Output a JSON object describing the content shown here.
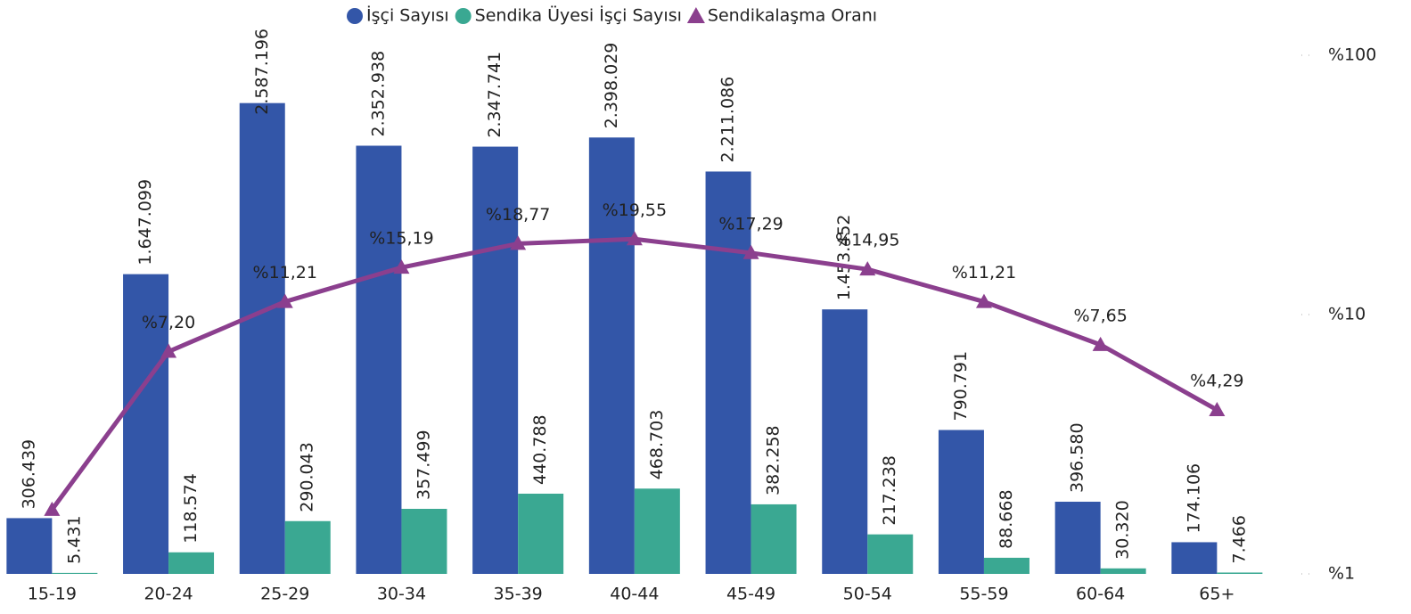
{
  "chart_data": {
    "type": "combo",
    "categories": [
      "15-19",
      "20-24",
      "25-29",
      "30-34",
      "35-39",
      "40-44",
      "45-49",
      "50-54",
      "55-59",
      "60-64",
      "65+"
    ],
    "series": [
      {
        "name": "İşçi Sayısı",
        "type": "bar",
        "color": "#3356a8",
        "values": [
          306439,
          1647099,
          2587196,
          2352938,
          2347741,
          2398029,
          2211086,
          1453452,
          790791,
          396580,
          174106
        ],
        "value_labels": [
          "306.439",
          "1.647.099",
          "2.587.196",
          "2.352.938",
          "2.347.741",
          "2.398.029",
          "2.211.086",
          "1.453.452",
          "790.791",
          "396.580",
          "174.106"
        ]
      },
      {
        "name": "Sendika Üyesi İşçi Sayısı",
        "type": "bar",
        "color": "#3aa892",
        "values": [
          5431,
          118574,
          290043,
          357499,
          440788,
          468703,
          382258,
          217238,
          88668,
          30320,
          7466
        ],
        "value_labels": [
          "5.431",
          "118.574",
          "290.043",
          "357.499",
          "440.788",
          "468.703",
          "382.258",
          "217.238",
          "88.668",
          "30.320",
          "7.466"
        ]
      },
      {
        "name": "Sendikalaşma Oranı",
        "type": "line",
        "axis": "y2",
        "color": "#8b3f8e",
        "values": [
          1.77,
          7.2,
          11.21,
          15.19,
          18.77,
          19.55,
          17.29,
          14.95,
          11.21,
          7.65,
          4.29
        ],
        "value_labels": [
          null,
          "%7,20",
          "%11,21",
          "%15,19",
          "%18,77",
          "%19,55",
          "%17,29",
          "%14,95",
          "%11,21",
          "%7,65",
          "%4,29"
        ]
      }
    ],
    "ylim": [
      0,
      2850000
    ],
    "y2lim": [
      1,
      100
    ],
    "y2log": true,
    "y2ticks": [
      {
        "value": 1,
        "label": "%1"
      },
      {
        "value": 10,
        "label": "%10"
      },
      {
        "value": 100,
        "label": "%100"
      }
    ],
    "grid": false
  }
}
